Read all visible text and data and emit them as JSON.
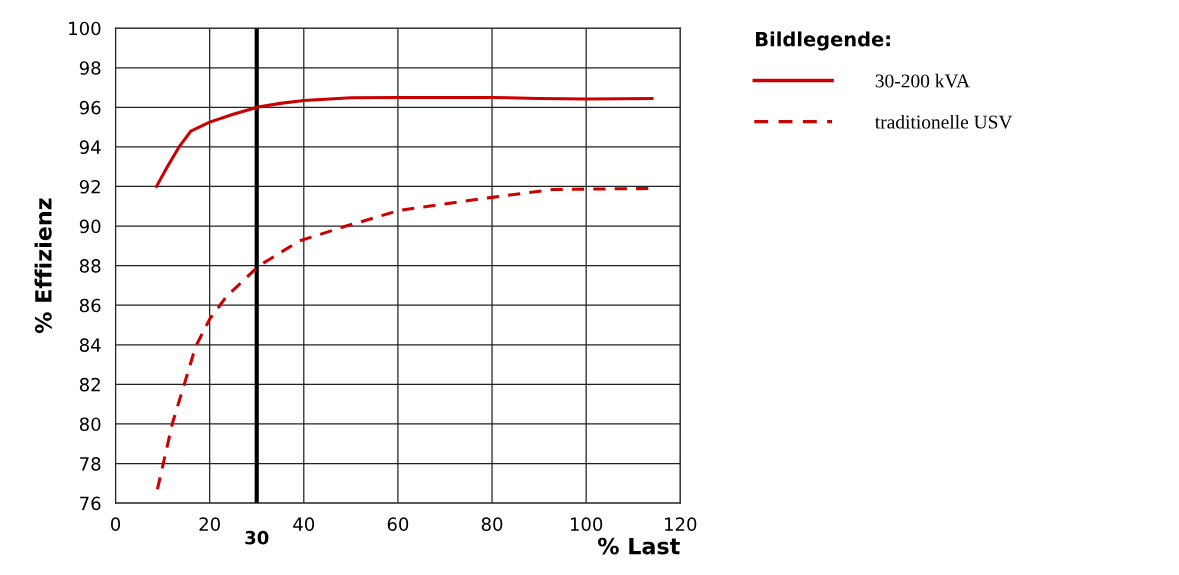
{
  "chart_data": {
    "type": "line",
    "xlabel": "% Last",
    "ylabel": "% Effizienz",
    "legend_title": "Bildlegende:",
    "legend": "top right",
    "grid": true,
    "xlim": [
      0,
      120
    ],
    "xticks": [
      0,
      20,
      40,
      60,
      80,
      100,
      120
    ],
    "ylim": [
      76,
      100
    ],
    "yticks": [
      76,
      78,
      80,
      82,
      84,
      86,
      88,
      90,
      92,
      94,
      96,
      98,
      100
    ],
    "ref_lines": [
      {
        "axis": "x",
        "value": 30,
        "label": "30",
        "color": "#000000"
      }
    ],
    "series": [
      {
        "name": "30-200 kVA",
        "color": "#cc0000",
        "line_style": "solid",
        "x": [
          8.7,
          11,
          13.5,
          16,
          20,
          25,
          30,
          35,
          40,
          50,
          60,
          80,
          90,
          100,
          114
        ],
        "values": [
          92,
          93,
          94,
          94.8,
          95.25,
          95.65,
          96,
          96.2,
          96.35,
          96.48,
          96.5,
          96.5,
          96.45,
          96.42,
          96.45
        ]
      },
      {
        "name": "traditionelle USV",
        "color": "#cc0000",
        "line_style": "dashed",
        "x": [
          8.9,
          12.1,
          14.6,
          17,
          20,
          23.6,
          30.5,
          39.1,
          49,
          60.4,
          80,
          93,
          113.6
        ],
        "values": [
          76.7,
          80.05,
          82.0,
          83.9,
          85.3,
          86.45,
          88.0,
          89.25,
          90.0,
          90.8,
          91.45,
          91.85,
          91.9
        ]
      }
    ]
  }
}
